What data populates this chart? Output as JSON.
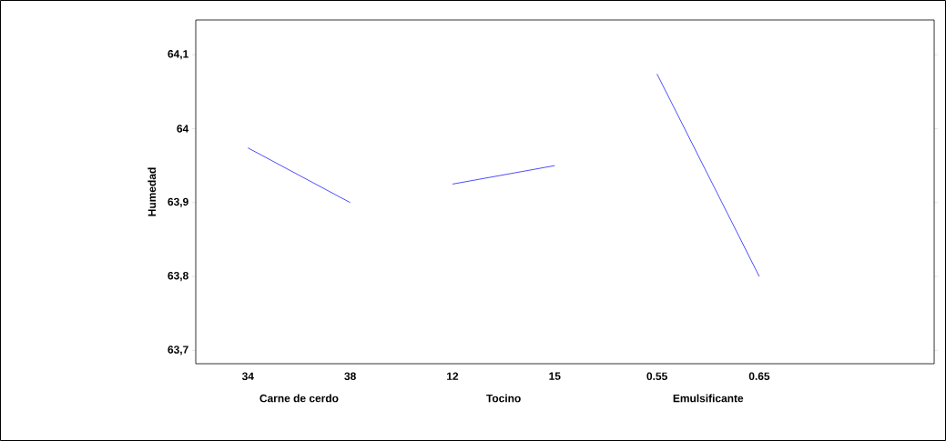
{
  "chart_data": {
    "type": "line",
    "ylabel": "Humedad",
    "categories": [
      "34",
      "38",
      "12",
      "15",
      "0.55",
      "0.65"
    ],
    "series": [
      {
        "color": "#0000ff",
        "values": [
          63.974,
          63.9,
          null,
          null,
          null,
          null
        ]
      },
      {
        "color": "#0000ff",
        "values": [
          null,
          null,
          63.925,
          63.95,
          null,
          null
        ]
      },
      {
        "color": "#0000ff",
        "values": [
          null,
          null,
          null,
          null,
          64.074,
          63.8
        ]
      }
    ],
    "annotations": [
      "Carne de cerdo",
      "Tocino",
      "Emulsificante"
    ],
    "ylim": [
      63.682,
      64.147
    ],
    "yticks": [
      {
        "value": 63.7,
        "label": "63,7"
      },
      {
        "value": 63.8,
        "label": "63,8"
      },
      {
        "value": 63.9,
        "label": "63,9"
      },
      64,
      {
        "value": 64.1,
        "label": "64,1"
      }
    ],
    "grid": false,
    "marker": "none",
    "line_style": "solid"
  }
}
